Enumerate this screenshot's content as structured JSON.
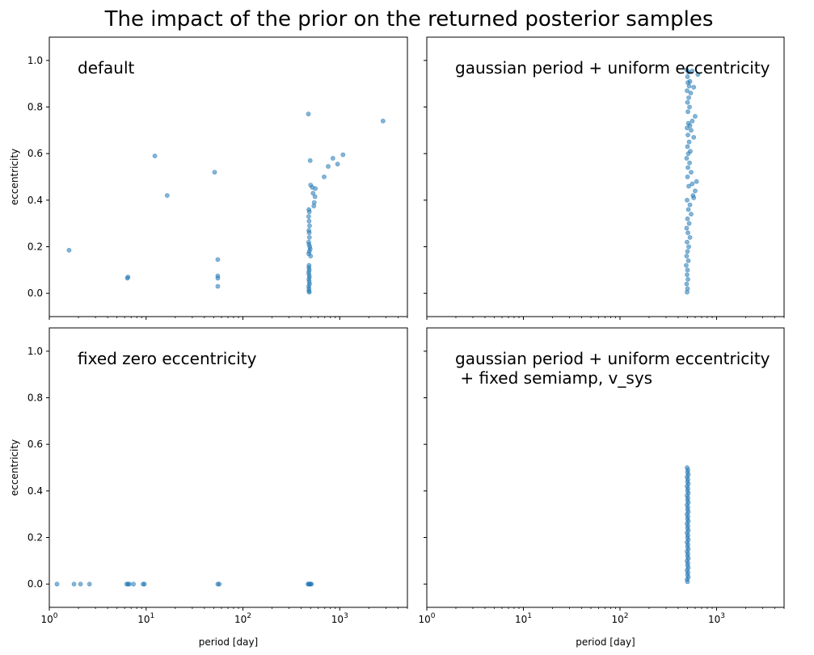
{
  "figure": {
    "title": "The impact of the prior on the returned posterior samples",
    "colors": {
      "marker": "#1f77b4",
      "axis": "#000000"
    }
  },
  "chart_data": [
    {
      "type": "scatter",
      "title": "default",
      "xlabel": "",
      "ylabel": "eccentricity",
      "xscale": "log",
      "xlim": [
        1,
        5000
      ],
      "ylim": [
        -0.1,
        1.1
      ],
      "yticks": [
        "0.0",
        "0.2",
        "0.4",
        "0.6",
        "0.8",
        "1.0"
      ],
      "xticks": [],
      "grid": false,
      "series": [
        {
          "points": [
            [
              1.6,
              0.185
            ],
            [
              6.4,
              0.065
            ],
            [
              6.5,
              0.07
            ],
            [
              12.3,
              0.59
            ],
            [
              16.5,
              0.42
            ],
            [
              51,
              0.52
            ],
            [
              55,
              0.145
            ],
            [
              55,
              0.075
            ],
            [
              55,
              0.065
            ],
            [
              55,
              0.03
            ],
            [
              475,
              0.77
            ],
            [
              480,
              0.36
            ],
            [
              485,
              0.35
            ],
            [
              478,
              0.33
            ],
            [
              482,
              0.31
            ],
            [
              488,
              0.29
            ],
            [
              480,
              0.27
            ],
            [
              484,
              0.26
            ],
            [
              486,
              0.24
            ],
            [
              478,
              0.22
            ],
            [
              482,
              0.21
            ],
            [
              490,
              0.2
            ],
            [
              495,
              0.19
            ],
            [
              485,
              0.18
            ],
            [
              478,
              0.17
            ],
            [
              500,
              0.16
            ],
            [
              482,
              0.12
            ],
            [
              480,
              0.11
            ],
            [
              485,
              0.1
            ],
            [
              478,
              0.09
            ],
            [
              482,
              0.08
            ],
            [
              486,
              0.07
            ],
            [
              480,
              0.06
            ],
            [
              484,
              0.05
            ],
            [
              488,
              0.04
            ],
            [
              478,
              0.03
            ],
            [
              482,
              0.02
            ],
            [
              480,
              0.01
            ],
            [
              485,
              0.005
            ],
            [
              495,
              0.57
            ],
            [
              500,
              0.465
            ],
            [
              520,
              0.455
            ],
            [
              560,
              0.45
            ],
            [
              530,
              0.43
            ],
            [
              555,
              0.415
            ],
            [
              545,
              0.39
            ],
            [
              540,
              0.375
            ],
            [
              690,
              0.5
            ],
            [
              760,
              0.545
            ],
            [
              850,
              0.58
            ],
            [
              950,
              0.555
            ],
            [
              1080,
              0.595
            ],
            [
              2800,
              0.74
            ]
          ]
        }
      ]
    },
    {
      "type": "scatter",
      "title": "gaussian period + uniform eccentricity",
      "xlabel": "",
      "ylabel": "",
      "xscale": "log",
      "xlim": [
        1,
        5000
      ],
      "ylim": [
        -0.1,
        1.1
      ],
      "yticks": [],
      "xticks": [],
      "grid": false,
      "series": [
        {
          "points": [
            [
              490,
              0.96
            ],
            [
              510,
              0.95
            ],
            [
              640,
              0.94
            ],
            [
              560,
              0.955
            ],
            [
              500,
              0.93
            ],
            [
              530,
              0.91
            ],
            [
              505,
              0.905
            ],
            [
              520,
              0.89
            ],
            [
              580,
              0.885
            ],
            [
              495,
              0.87
            ],
            [
              540,
              0.86
            ],
            [
              515,
              0.84
            ],
            [
              500,
              0.82
            ],
            [
              525,
              0.8
            ],
            [
              505,
              0.78
            ],
            [
              600,
              0.76
            ],
            [
              560,
              0.74
            ],
            [
              510,
              0.73
            ],
            [
              530,
              0.72
            ],
            [
              495,
              0.71
            ],
            [
              545,
              0.7
            ],
            [
              505,
              0.68
            ],
            [
              580,
              0.67
            ],
            [
              520,
              0.65
            ],
            [
              500,
              0.63
            ],
            [
              535,
              0.61
            ],
            [
              510,
              0.6
            ],
            [
              490,
              0.58
            ],
            [
              525,
              0.56
            ],
            [
              505,
              0.54
            ],
            [
              545,
              0.52
            ],
            [
              500,
              0.5
            ],
            [
              620,
              0.48
            ],
            [
              560,
              0.47
            ],
            [
              515,
              0.46
            ],
            [
              600,
              0.44
            ],
            [
              570,
              0.42
            ],
            [
              580,
              0.41
            ],
            [
              495,
              0.4
            ],
            [
              530,
              0.38
            ],
            [
              510,
              0.36
            ],
            [
              545,
              0.34
            ],
            [
              500,
              0.32
            ],
            [
              520,
              0.3
            ],
            [
              490,
              0.28
            ],
            [
              505,
              0.26
            ],
            [
              530,
              0.24
            ],
            [
              495,
              0.22
            ],
            [
              515,
              0.2
            ],
            [
              500,
              0.18
            ],
            [
              490,
              0.16
            ],
            [
              510,
              0.14
            ],
            [
              485,
              0.12
            ],
            [
              500,
              0.1
            ],
            [
              495,
              0.08
            ],
            [
              505,
              0.06
            ],
            [
              490,
              0.04
            ],
            [
              500,
              0.02
            ],
            [
              495,
              0.005
            ]
          ]
        }
      ]
    },
    {
      "type": "scatter",
      "title": "fixed zero eccentricity",
      "xlabel": "period [day]",
      "ylabel": "eccentricity",
      "xscale": "log",
      "xlim": [
        1,
        5000
      ],
      "ylim": [
        -0.1,
        1.1
      ],
      "yticks": [
        "0.0",
        "0.2",
        "0.4",
        "0.6",
        "0.8",
        "1.0"
      ],
      "xticks": [
        "10^0",
        "10^1",
        "10^2",
        "10^3"
      ],
      "grid": false,
      "series": [
        {
          "points": [
            [
              1.2,
              0
            ],
            [
              1.8,
              0
            ],
            [
              2.1,
              0
            ],
            [
              2.6,
              0
            ],
            [
              6.3,
              0
            ],
            [
              6.5,
              0
            ],
            [
              6.7,
              0
            ],
            [
              7.4,
              0
            ],
            [
              9.3,
              0
            ],
            [
              9.6,
              0
            ],
            [
              55,
              0
            ],
            [
              57,
              0
            ],
            [
              470,
              0
            ],
            [
              480,
              0
            ],
            [
              490,
              0
            ],
            [
              500,
              0
            ],
            [
              510,
              0
            ]
          ]
        }
      ]
    },
    {
      "type": "scatter",
      "title": "gaussian period + uniform eccentricity\n + fixed semiamp, v_sys",
      "xlabel": "period [day]",
      "ylabel": "",
      "xscale": "log",
      "xlim": [
        1,
        5000
      ],
      "ylim": [
        -0.1,
        1.1
      ],
      "yticks": [],
      "xticks": [
        "10^0",
        "10^1",
        "10^2",
        "10^3"
      ],
      "grid": false,
      "series": [
        {
          "points": [
            [
              495,
              0.5
            ],
            [
              505,
              0.49
            ],
            [
              500,
              0.48
            ],
            [
              510,
              0.47
            ],
            [
              495,
              0.46
            ],
            [
              505,
              0.45
            ],
            [
              500,
              0.44
            ],
            [
              510,
              0.43
            ],
            [
              495,
              0.42
            ],
            [
              505,
              0.41
            ],
            [
              500,
              0.4
            ],
            [
              510,
              0.39
            ],
            [
              495,
              0.38
            ],
            [
              505,
              0.37
            ],
            [
              500,
              0.36
            ],
            [
              510,
              0.35
            ],
            [
              495,
              0.34
            ],
            [
              505,
              0.33
            ],
            [
              500,
              0.32
            ],
            [
              510,
              0.31
            ],
            [
              495,
              0.3
            ],
            [
              505,
              0.29
            ],
            [
              500,
              0.28
            ],
            [
              510,
              0.27
            ],
            [
              495,
              0.26
            ],
            [
              505,
              0.25
            ],
            [
              500,
              0.24
            ],
            [
              510,
              0.23
            ],
            [
              495,
              0.22
            ],
            [
              505,
              0.21
            ],
            [
              500,
              0.2
            ],
            [
              510,
              0.19
            ],
            [
              495,
              0.18
            ],
            [
              505,
              0.17
            ],
            [
              500,
              0.16
            ],
            [
              510,
              0.15
            ],
            [
              495,
              0.14
            ],
            [
              505,
              0.13
            ],
            [
              500,
              0.12
            ],
            [
              510,
              0.11
            ],
            [
              495,
              0.1
            ],
            [
              505,
              0.09
            ],
            [
              500,
              0.08
            ],
            [
              510,
              0.07
            ],
            [
              495,
              0.06
            ],
            [
              505,
              0.05
            ],
            [
              500,
              0.04
            ],
            [
              510,
              0.03
            ],
            [
              495,
              0.02
            ],
            [
              500,
              0.01
            ]
          ]
        }
      ]
    }
  ]
}
